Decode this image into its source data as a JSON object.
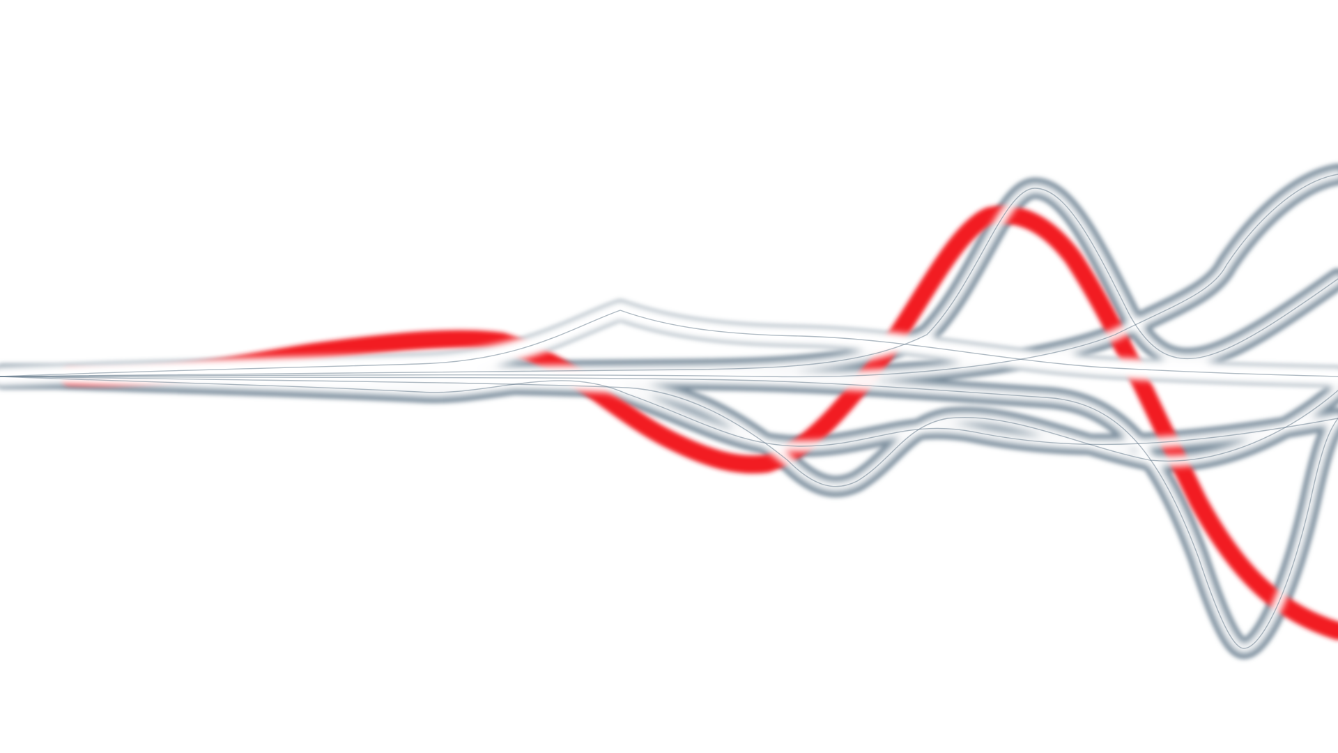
{
  "scene": {
    "kind": "glowing-wave-strands",
    "background": "#ffffff",
    "strand_outline_color": "#6b7f90",
    "strand_core_color": "#ffffff",
    "highlight_color": "#f21c24",
    "strand_count": 6,
    "highlighted_strand_count": 1
  }
}
